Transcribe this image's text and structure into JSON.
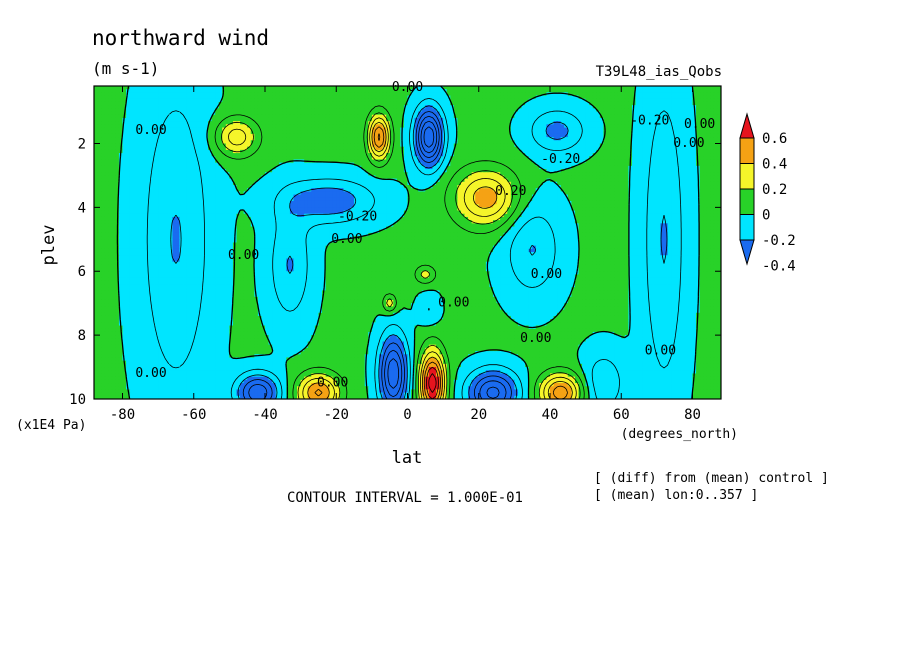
{
  "chart_data": {
    "type": "heatmap",
    "title": "northward wind",
    "units": "(m s-1)",
    "run_label": "T39L48_ias_Qobs",
    "xlabel": "lat",
    "xunits": "(degrees_north)",
    "ylabel": "plev",
    "yunits": "(x1E4 Pa)",
    "xlim": [
      -88,
      88
    ],
    "ylim": [
      10,
      0.2
    ],
    "x_ticks": [
      -80,
      -60,
      -40,
      -20,
      0,
      20,
      40,
      60,
      80
    ],
    "x_tick_labels": [
      "-80",
      "-60",
      "-40",
      "-20",
      "0",
      "20",
      "40",
      "60",
      "80"
    ],
    "y_ticks": [
      2,
      4,
      6,
      8,
      10
    ],
    "y_tick_labels": [
      "2",
      "4",
      "6",
      "8",
      "10"
    ],
    "contour_interval_text": "CONTOUR INTERVAL = 1.000E-01",
    "notes": [
      "[ (diff) from (mean) control ]",
      "[ (mean) lon:0..357 ]"
    ],
    "colorbar": {
      "levels": [
        -0.4,
        -0.2,
        0,
        0.2,
        0.4,
        0.6
      ],
      "labels": [
        "-0.4",
        "-0.2",
        "0",
        "0.2",
        "0.4",
        "0.6"
      ],
      "colors": [
        "#1a6bf0",
        "#00e5ff",
        "#28d228",
        "#f5f52a",
        "#f5a214",
        "#e6141e"
      ]
    },
    "contour_labels": [
      {
        "text": "0.00",
        "lat": -72,
        "plev": 1.6
      },
      {
        "text": "0.00",
        "lat": 0,
        "plev": 0.25
      },
      {
        "text": "-0.20",
        "lat": 68,
        "plev": 1.3
      },
      {
        "text": "0.00",
        "lat": 82,
        "plev": 1.4
      },
      {
        "text": "-0.20",
        "lat": 43,
        "plev": 2.5
      },
      {
        "text": "0.00",
        "lat": 79,
        "plev": 2.0
      },
      {
        "text": "0.20",
        "lat": 29,
        "plev": 3.5
      },
      {
        "text": "-0.20",
        "lat": -14,
        "plev": 4.3
      },
      {
        "text": "0.00",
        "lat": -17,
        "plev": 5.0
      },
      {
        "text": "0.00",
        "lat": -46,
        "plev": 5.5
      },
      {
        "text": "0.00",
        "lat": 39,
        "plev": 6.1
      },
      {
        "text": "0.00",
        "lat": 13,
        "plev": 7.0
      },
      {
        "text": "0.00",
        "lat": 36,
        "plev": 8.1
      },
      {
        "text": "0.00",
        "lat": -72,
        "plev": 9.2
      },
      {
        "text": "0.00",
        "lat": -21,
        "plev": 9.5
      },
      {
        "text": "0.00",
        "lat": 71,
        "plev": 8.5
      }
    ],
    "field_features": [
      {
        "value": 0.6,
        "lat": -8,
        "plev": 1.8,
        "sx": 3,
        "sy": 0.7
      },
      {
        "value": -0.7,
        "lat": 6,
        "plev": 1.8,
        "sx": 4,
        "sy": 0.9
      },
      {
        "value": 0.35,
        "lat": -48,
        "plev": 1.8,
        "sx": 6,
        "sy": 0.6
      },
      {
        "value": -0.25,
        "lat": 42,
        "plev": 1.6,
        "sx": 8,
        "sy": 0.7
      },
      {
        "value": 0.45,
        "lat": 22,
        "plev": 3.7,
        "sx": 9,
        "sy": 0.9
      },
      {
        "value": -0.3,
        "lat": -22,
        "plev": 3.8,
        "sx": 13,
        "sy": 0.7
      },
      {
        "value": -0.22,
        "lat": 35,
        "plev": 5.3,
        "sx": 8,
        "sy": 1.5
      },
      {
        "value": -0.22,
        "lat": -33,
        "plev": 5.8,
        "sx": 6,
        "sy": 1.8
      },
      {
        "value": 0.22,
        "lat": 5,
        "plev": 6.1,
        "sx": 3,
        "sy": 0.3
      },
      {
        "value": 0.25,
        "lat": -5,
        "plev": 7.0,
        "sx": 2,
        "sy": 0.3
      },
      {
        "value": -0.12,
        "lat": 6,
        "plev": 7.2,
        "sx": 3,
        "sy": 0.5
      },
      {
        "value": 0.75,
        "lat": 7,
        "plev": 9.5,
        "sx": 3.5,
        "sy": 1.0
      },
      {
        "value": -0.6,
        "lat": -4,
        "plev": 9.2,
        "sx": 4,
        "sy": 1.2
      },
      {
        "value": 0.5,
        "lat": -25,
        "plev": 9.8,
        "sx": 6,
        "sy": 0.6
      },
      {
        "value": -0.5,
        "lat": -42,
        "plev": 9.8,
        "sx": 6,
        "sy": 0.6
      },
      {
        "value": -0.55,
        "lat": 24,
        "plev": 9.8,
        "sx": 7,
        "sy": 0.7
      },
      {
        "value": 0.55,
        "lat": 43,
        "plev": 9.8,
        "sx": 6,
        "sy": 0.6
      },
      {
        "value": -0.22,
        "lat": -65,
        "plev": 5.0,
        "sx": 10,
        "sy": 5.0
      },
      {
        "value": -0.22,
        "lat": 72,
        "plev": 5.0,
        "sx": 6,
        "sy": 5.0
      },
      {
        "value": -0.2,
        "lat": 55,
        "plev": 9.5,
        "sx": 6,
        "sy": 1.0
      }
    ]
  }
}
